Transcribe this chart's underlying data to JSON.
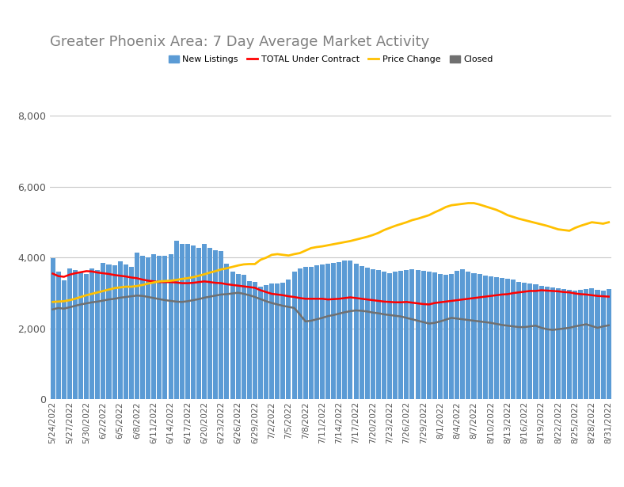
{
  "title": "Greater Phoenix Area: 7 Day Average Market Activity",
  "title_color": "#808080",
  "background_color": "#ffffff",
  "bar_color": "#5B9BD5",
  "line_red_color": "#FF0000",
  "line_yellow_color": "#FFC000",
  "line_gray_color": "#707070",
  "ylim": [
    0,
    8800
  ],
  "yticks": [
    0,
    2000,
    4000,
    6000,
    8000
  ],
  "legend_labels": [
    "New Listings",
    "TOTAL Under Contract",
    "Price Change",
    "Closed"
  ],
  "xtick_labels": [
    "5/24/2022",
    "5/27/2022",
    "5/30/2022",
    "6/2/2022",
    "6/5/2022",
    "6/8/2022",
    "6/11/2022",
    "6/14/2022",
    "6/17/2022",
    "6/20/2022",
    "6/23/2022",
    "6/26/2022",
    "6/29/2022",
    "7/2/2022",
    "7/5/2022",
    "7/8/2022",
    "7/11/2022",
    "7/14/2022",
    "7/17/2022",
    "7/20/2022",
    "7/23/2022",
    "7/26/2022",
    "7/29/2022",
    "8/1/2022",
    "8/4/2022",
    "8/7/2022",
    "8/10/2022",
    "8/13/2022",
    "8/16/2022",
    "8/19/2022",
    "8/22/2022",
    "8/25/2022",
    "8/28/2022",
    "8/31/2022"
  ],
  "xtick_positions": [
    0,
    3,
    6,
    9,
    12,
    15,
    18,
    21,
    24,
    27,
    30,
    33,
    36,
    39,
    42,
    45,
    48,
    51,
    54,
    57,
    60,
    63,
    66,
    69,
    72,
    75,
    78,
    81,
    84,
    87,
    90,
    93,
    96,
    99
  ],
  "new_listings": [
    3980,
    3600,
    3350,
    3700,
    3650,
    3600,
    3550,
    3700,
    3650,
    3850,
    3800,
    3780,
    3900,
    3800,
    3750,
    4150,
    4050,
    4000,
    4100,
    4050,
    4050,
    4100,
    4470,
    4400,
    4380,
    4350,
    4270,
    4380,
    4280,
    4220,
    4180,
    3830,
    3610,
    3540,
    3510,
    3330,
    3310,
    3180,
    3220,
    3270,
    3260,
    3290,
    3390,
    3600,
    3690,
    3730,
    3750,
    3780,
    3810,
    3820,
    3850,
    3880,
    3910,
    3920,
    3840,
    3770,
    3720,
    3680,
    3640,
    3610,
    3570,
    3600,
    3620,
    3640,
    3670,
    3650,
    3620,
    3600,
    3580,
    3540,
    3520,
    3545,
    3630,
    3680,
    3610,
    3560,
    3530,
    3500,
    3480,
    3460,
    3430,
    3410,
    3380,
    3310,
    3290,
    3260,
    3240,
    3210,
    3190,
    3160,
    3140,
    3110,
    3090,
    3070,
    3100,
    3120,
    3140,
    3100,
    3080,
    3110
  ],
  "under_contract": [
    3550,
    3480,
    3460,
    3520,
    3560,
    3590,
    3620,
    3610,
    3580,
    3560,
    3540,
    3510,
    3490,
    3470,
    3440,
    3420,
    3380,
    3350,
    3330,
    3310,
    3310,
    3310,
    3300,
    3280,
    3280,
    3290,
    3310,
    3330,
    3310,
    3290,
    3280,
    3250,
    3230,
    3210,
    3190,
    3170,
    3150,
    3080,
    3030,
    2980,
    2960,
    2940,
    2910,
    2890,
    2860,
    2840,
    2840,
    2840,
    2840,
    2820,
    2830,
    2840,
    2860,
    2880,
    2860,
    2840,
    2820,
    2800,
    2780,
    2760,
    2750,
    2740,
    2740,
    2750,
    2730,
    2710,
    2690,
    2680,
    2720,
    2740,
    2760,
    2780,
    2800,
    2820,
    2840,
    2860,
    2880,
    2900,
    2920,
    2940,
    2960,
    2970,
    3000,
    3020,
    3040,
    3060,
    3060,
    3080,
    3070,
    3060,
    3050,
    3030,
    3020,
    2990,
    2970,
    2960,
    2940,
    2920,
    2910,
    2900
  ],
  "price_change": [
    2750,
    2760,
    2770,
    2800,
    2840,
    2890,
    2940,
    2980,
    3020,
    3060,
    3100,
    3140,
    3160,
    3180,
    3180,
    3200,
    3230,
    3270,
    3300,
    3330,
    3340,
    3350,
    3370,
    3400,
    3420,
    3450,
    3490,
    3530,
    3580,
    3620,
    3670,
    3700,
    3740,
    3780,
    3810,
    3820,
    3820,
    3940,
    4000,
    4080,
    4100,
    4080,
    4060,
    4100,
    4130,
    4200,
    4270,
    4300,
    4320,
    4350,
    4380,
    4410,
    4440,
    4470,
    4510,
    4550,
    4590,
    4640,
    4700,
    4780,
    4840,
    4900,
    4950,
    5000,
    5060,
    5100,
    5150,
    5200,
    5280,
    5350,
    5430,
    5480,
    5500,
    5520,
    5540,
    5540,
    5500,
    5450,
    5400,
    5350,
    5280,
    5200,
    5150,
    5100,
    5060,
    5020,
    4980,
    4940,
    4900,
    4850,
    4800,
    4780,
    4760,
    4840,
    4900,
    4950,
    5000,
    4980,
    4960,
    5000
  ],
  "closed": [
    2540,
    2580,
    2560,
    2600,
    2640,
    2680,
    2710,
    2740,
    2760,
    2790,
    2820,
    2840,
    2870,
    2890,
    2910,
    2930,
    2920,
    2890,
    2860,
    2830,
    2800,
    2780,
    2760,
    2750,
    2770,
    2800,
    2830,
    2870,
    2900,
    2930,
    2960,
    2970,
    2990,
    3010,
    2980,
    2940,
    2890,
    2830,
    2770,
    2720,
    2680,
    2640,
    2610,
    2580,
    2400,
    2200,
    2220,
    2260,
    2300,
    2350,
    2380,
    2420,
    2460,
    2490,
    2510,
    2500,
    2480,
    2450,
    2430,
    2400,
    2380,
    2360,
    2340,
    2300,
    2260,
    2220,
    2180,
    2140,
    2160,
    2200,
    2250,
    2300,
    2280,
    2260,
    2240,
    2220,
    2200,
    2180,
    2160,
    2130,
    2100,
    2080,
    2060,
    2040,
    2040,
    2060,
    2080,
    2020,
    1980,
    1960,
    1980,
    2000,
    2020,
    2060,
    2090,
    2120,
    2070,
    2020,
    2060,
    2090
  ]
}
